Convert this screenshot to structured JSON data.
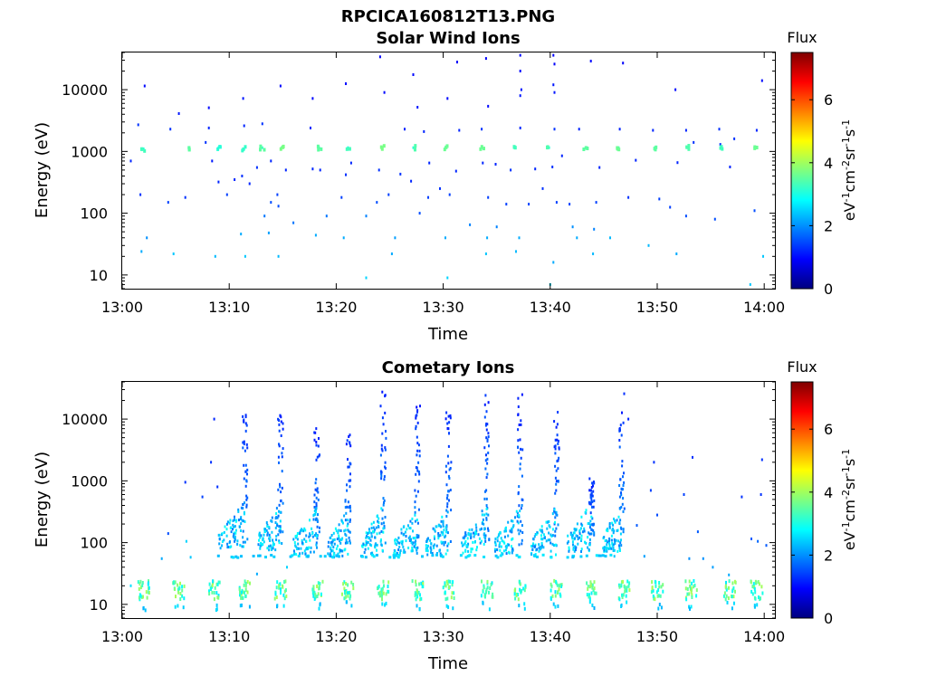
{
  "figure_title": "RPCICA160812T13.PNG",
  "colorbar_stops": [
    "#00007f",
    "#0000ff",
    "#007fff",
    "#00ffff",
    "#7fff7f",
    "#ffff00",
    "#ff7f00",
    "#ff0000",
    "#7f0000"
  ],
  "chart_data": [
    {
      "type": "heatmap",
      "title": "Solar Wind Ions",
      "xlabel": "Time",
      "ylabel": "Energy (eV)",
      "yscale": "log",
      "xlim": [
        "13:00",
        "14:01"
      ],
      "ylim": [
        6,
        40000
      ],
      "x_ticks": [
        "13:00",
        "13:10",
        "13:20",
        "13:30",
        "13:40",
        "13:50",
        "14:00"
      ],
      "y_ticks": [
        {
          "value": 10,
          "label": "10"
        },
        {
          "value": 100,
          "label": "100"
        },
        {
          "value": 1000,
          "label": "1000"
        },
        {
          "value": 10000,
          "label": "10000"
        }
      ],
      "colorbar": {
        "label": "Flux",
        "units": "eV-1cm-2sr-1s-1",
        "range": [
          0,
          7.5
        ],
        "ticks": [
          0,
          2,
          4,
          6
        ]
      },
      "points": [
        [
          13.1,
          1150,
          3.2
        ],
        [
          14.9,
          1150,
          3.4
        ],
        [
          18.4,
          1150,
          3.2
        ],
        [
          21.1,
          1150,
          3.0
        ],
        [
          24.3,
          1150,
          3.4
        ],
        [
          27.2,
          1150,
          3.1
        ],
        [
          30.2,
          1150,
          3.3
        ],
        [
          33.6,
          1150,
          3.3
        ],
        [
          36.7,
          1150,
          3.0
        ],
        [
          39.9,
          1150,
          3.1
        ],
        [
          43.3,
          1150,
          3.2
        ],
        [
          46.4,
          1150,
          3.3
        ],
        [
          49.8,
          1150,
          3.2
        ],
        [
          52.8,
          1150,
          3.1
        ],
        [
          56.0,
          1150,
          3.0
        ],
        [
          59.2,
          1150,
          3.3
        ],
        [
          2.0,
          1100,
          3.0
        ],
        [
          6.2,
          1150,
          3.2
        ],
        [
          9.0,
          1150,
          2.8
        ],
        [
          11.4,
          1100,
          2.9
        ],
        [
          1.5,
          2700,
          1.3
        ],
        [
          4.5,
          2300,
          1.3
        ],
        [
          8.1,
          2400,
          1.2
        ],
        [
          11.4,
          2600,
          1.2
        ],
        [
          13.1,
          2800,
          1.3
        ],
        [
          17.6,
          2400,
          1.2
        ],
        [
          26.4,
          2300,
          1.2
        ],
        [
          28.2,
          2100,
          1.2
        ],
        [
          31.5,
          2200,
          1.2
        ],
        [
          33.6,
          2300,
          1.3
        ],
        [
          37.2,
          2400,
          1.2
        ],
        [
          40.4,
          2300,
          1.3
        ],
        [
          42.7,
          2300,
          1.2
        ],
        [
          46.5,
          2300,
          1.2
        ],
        [
          49.6,
          2200,
          1.2
        ],
        [
          52.7,
          2200,
          1.2
        ],
        [
          55.8,
          2300,
          1.3
        ],
        [
          59.3,
          2200,
          1.2
        ],
        [
          2.1,
          11500,
          1.0
        ],
        [
          5.3,
          4100,
          1.1
        ],
        [
          8.1,
          5100,
          1.0
        ],
        [
          11.3,
          7200,
          1.1
        ],
        [
          14.8,
          11500,
          1.0
        ],
        [
          17.8,
          7200,
          1.0
        ],
        [
          20.9,
          12500,
          1.0
        ],
        [
          24.1,
          34000,
          0.9
        ],
        [
          24.5,
          9000,
          1.0
        ],
        [
          27.2,
          17500,
          1.0
        ],
        [
          27.6,
          5200,
          1.1
        ],
        [
          30.4,
          7200,
          1.0
        ],
        [
          31.3,
          28000,
          0.9
        ],
        [
          34.0,
          32000,
          0.9
        ],
        [
          34.2,
          5400,
          1.0
        ],
        [
          37.2,
          36000,
          1.0
        ],
        [
          37.2,
          20000,
          1.0
        ],
        [
          37.3,
          10000,
          1.1
        ],
        [
          37.2,
          8000,
          1.1
        ],
        [
          40.3,
          36000,
          0.9
        ],
        [
          40.4,
          26000,
          0.9
        ],
        [
          40.3,
          12000,
          1.1
        ],
        [
          40.4,
          9000,
          1.1
        ],
        [
          43.8,
          29000,
          1.0
        ],
        [
          46.8,
          27000,
          0.9
        ],
        [
          51.7,
          10000,
          1.0
        ],
        [
          59.8,
          14000,
          1.0
        ],
        [
          0.8,
          700,
          1.2
        ],
        [
          7.8,
          1400,
          1.3
        ],
        [
          8.4,
          700,
          1.1
        ],
        [
          9.0,
          320,
          1.2
        ],
        [
          10.5,
          350,
          1.2
        ],
        [
          11.2,
          400,
          1.3
        ],
        [
          11.9,
          300,
          1.2
        ],
        [
          12.6,
          550,
          1.3
        ],
        [
          13.9,
          700,
          1.2
        ],
        [
          14.5,
          200,
          1.4
        ],
        [
          15.3,
          500,
          1.2
        ],
        [
          17.8,
          520,
          1.2
        ],
        [
          18.5,
          500,
          1.2
        ],
        [
          20.9,
          420,
          1.3
        ],
        [
          21.4,
          650,
          1.2
        ],
        [
          24.0,
          500,
          1.3
        ],
        [
          24.9,
          200,
          1.4
        ],
        [
          26.0,
          430,
          1.3
        ],
        [
          27.0,
          330,
          1.2
        ],
        [
          28.7,
          650,
          1.2
        ],
        [
          29.7,
          250,
          1.3
        ],
        [
          31.2,
          480,
          1.2
        ],
        [
          33.7,
          650,
          1.2
        ],
        [
          34.9,
          620,
          1.2
        ],
        [
          36.3,
          500,
          1.3
        ],
        [
          38.6,
          520,
          1.2
        ],
        [
          40.2,
          560,
          1.3
        ],
        [
          41.1,
          850,
          1.2
        ],
        [
          44.6,
          550,
          1.2
        ],
        [
          48.0,
          720,
          1.2
        ],
        [
          51.9,
          660,
          1.2
        ],
        [
          53.4,
          1400,
          1.3
        ],
        [
          55.9,
          1300,
          1.3
        ],
        [
          56.8,
          560,
          1.2
        ],
        [
          57.2,
          1600,
          1.3
        ],
        [
          1.7,
          200,
          1.3
        ],
        [
          4.3,
          150,
          1.4
        ],
        [
          5.9,
          180,
          1.3
        ],
        [
          9.8,
          200,
          1.4
        ],
        [
          13.9,
          150,
          1.5
        ],
        [
          14.6,
          130,
          1.5
        ],
        [
          20.5,
          180,
          1.4
        ],
        [
          23.8,
          150,
          1.5
        ],
        [
          27.8,
          100,
          1.5
        ],
        [
          28.6,
          180,
          1.4
        ],
        [
          30.6,
          200,
          1.4
        ],
        [
          34.2,
          180,
          1.4
        ],
        [
          35.9,
          140,
          1.4
        ],
        [
          38.0,
          140,
          1.4
        ],
        [
          39.3,
          250,
          1.3
        ],
        [
          40.6,
          150,
          1.4
        ],
        [
          41.8,
          140,
          1.4
        ],
        [
          44.3,
          150,
          1.4
        ],
        [
          47.3,
          180,
          1.3
        ],
        [
          50.2,
          170,
          1.4
        ],
        [
          51.2,
          125,
          1.4
        ],
        [
          52.7,
          90,
          1.5
        ],
        [
          55.4,
          80,
          1.5
        ],
        [
          59.1,
          110,
          1.5
        ],
        [
          13.3,
          90,
          1.8
        ],
        [
          16.0,
          70,
          1.8
        ],
        [
          19.1,
          90,
          1.8
        ],
        [
          22.8,
          90,
          1.9
        ],
        [
          32.5,
          65,
          1.9
        ],
        [
          35.0,
          60,
          1.9
        ],
        [
          42.1,
          60,
          2.0
        ],
        [
          44.1,
          55,
          1.9
        ],
        [
          2.3,
          40,
          2.0
        ],
        [
          11.1,
          46,
          2.2
        ],
        [
          13.7,
          48,
          2.1
        ],
        [
          18.1,
          44,
          2.2
        ],
        [
          20.7,
          40,
          2.2
        ],
        [
          25.5,
          40,
          2.1
        ],
        [
          30.2,
          40,
          2.2
        ],
        [
          34.1,
          40,
          2.2
        ],
        [
          37.1,
          40,
          2.2
        ],
        [
          42.5,
          40,
          2.2
        ],
        [
          45.6,
          40,
          2.3
        ],
        [
          49.2,
          30,
          2.3
        ],
        [
          1.8,
          24,
          2.2
        ],
        [
          4.8,
          22,
          2.4
        ],
        [
          8.7,
          20,
          2.3
        ],
        [
          11.5,
          20,
          2.4
        ],
        [
          14.6,
          20,
          2.3
        ],
        [
          25.2,
          22,
          2.2
        ],
        [
          34.0,
          22,
          2.4
        ],
        [
          36.8,
          24,
          2.3
        ],
        [
          40.3,
          16,
          2.2
        ],
        [
          44.0,
          22,
          2.3
        ],
        [
          51.8,
          22,
          2.2
        ],
        [
          59.9,
          20,
          2.4
        ],
        [
          22.8,
          9,
          2.5
        ],
        [
          30.4,
          9,
          2.5
        ],
        [
          40.0,
          7,
          2.6
        ],
        [
          58.7,
          7,
          2.4
        ]
      ]
    },
    {
      "type": "heatmap",
      "title": "Cometary Ions",
      "xlabel": "Time",
      "ylabel": "Energy (eV)",
      "yscale": "log",
      "xlim": [
        "13:00",
        "14:01"
      ],
      "ylim": [
        6,
        40000
      ],
      "x_ticks": [
        "13:00",
        "13:10",
        "13:20",
        "13:30",
        "13:40",
        "13:50",
        "14:00"
      ],
      "y_ticks": [
        {
          "value": 10,
          "label": "10"
        },
        {
          "value": 100,
          "label": "100"
        },
        {
          "value": 1000,
          "label": "1000"
        },
        {
          "value": 10000,
          "label": "10000"
        }
      ],
      "colorbar": {
        "label": "Flux",
        "units": "eV-1cm-2sr-1s-1",
        "range": [
          0,
          7.5
        ],
        "ticks": [
          0,
          2,
          4,
          6
        ]
      },
      "bursts": [
        {
          "t": 11.5,
          "top": 16000,
          "peak": 100,
          "left": 9.0
        },
        {
          "t": 14.8,
          "top": 14000,
          "peak": 95,
          "left": 12.7
        },
        {
          "t": 18.2,
          "top": 7500,
          "peak": 80,
          "left": 16.0
        },
        {
          "t": 21.1,
          "top": 8000,
          "peak": 75,
          "left": 19.2
        },
        {
          "t": 24.4,
          "top": 33000,
          "peak": 80,
          "left": 22.4
        },
        {
          "t": 27.6,
          "top": 18000,
          "peak": 80,
          "left": 25.4
        },
        {
          "t": 30.5,
          "top": 15000,
          "peak": 80,
          "left": 28.4
        },
        {
          "t": 34.1,
          "top": 30000,
          "peak": 85,
          "left": 31.7
        },
        {
          "t": 37.2,
          "top": 25000,
          "peak": 80,
          "left": 34.8
        },
        {
          "t": 40.6,
          "top": 13000,
          "peak": 80,
          "left": 38.2
        },
        {
          "t": 43.9,
          "top": 1100,
          "peak": 90,
          "left": 41.6
        },
        {
          "t": 46.7,
          "top": 26000,
          "peak": 90,
          "left": 44.9
        }
      ],
      "low_band_times": [
        2.0,
        5.3,
        8.6,
        11.5,
        14.8,
        18.2,
        21.1,
        24.4,
        27.6,
        30.5,
        34.1,
        37.2,
        40.6,
        43.9,
        46.9,
        50.0,
        53.2,
        56.8,
        59.3
      ],
      "points": [
        [
          5.9,
          950,
          1.3
        ],
        [
          7.5,
          550,
          1.4
        ],
        [
          8.3,
          2000,
          1.3
        ],
        [
          8.6,
          10000,
          1.2
        ],
        [
          8.9,
          800,
          1.3
        ],
        [
          4.3,
          140,
          1.5
        ],
        [
          3.7,
          55,
          2.2
        ],
        [
          6.0,
          105,
          2.5
        ],
        [
          6.4,
          58,
          2.4
        ],
        [
          12.6,
          31,
          2.2
        ],
        [
          15.4,
          40,
          2.5
        ],
        [
          47.3,
          10000,
          1.2
        ],
        [
          48.1,
          190,
          1.6
        ],
        [
          49.4,
          700,
          1.4
        ],
        [
          49.7,
          2000,
          1.3
        ],
        [
          50.0,
          280,
          1.5
        ],
        [
          48.8,
          60,
          2.1
        ],
        [
          52.5,
          600,
          1.4
        ],
        [
          53.3,
          2400,
          1.3
        ],
        [
          53.8,
          150,
          1.6
        ],
        [
          54.3,
          55,
          2.0
        ],
        [
          57.9,
          550,
          1.3
        ],
        [
          58.8,
          115,
          1.6
        ],
        [
          59.7,
          600,
          1.3
        ],
        [
          59.8,
          2200,
          1.3
        ],
        [
          59.4,
          105,
          1.7
        ],
        [
          60.2,
          90,
          1.6
        ],
        [
          56.7,
          30,
          2.2
        ],
        [
          55.2,
          40,
          2.1
        ],
        [
          53.0,
          55,
          2.0
        ],
        [
          46.0,
          60,
          2.4
        ],
        [
          0.8,
          20,
          2.6
        ]
      ]
    }
  ]
}
